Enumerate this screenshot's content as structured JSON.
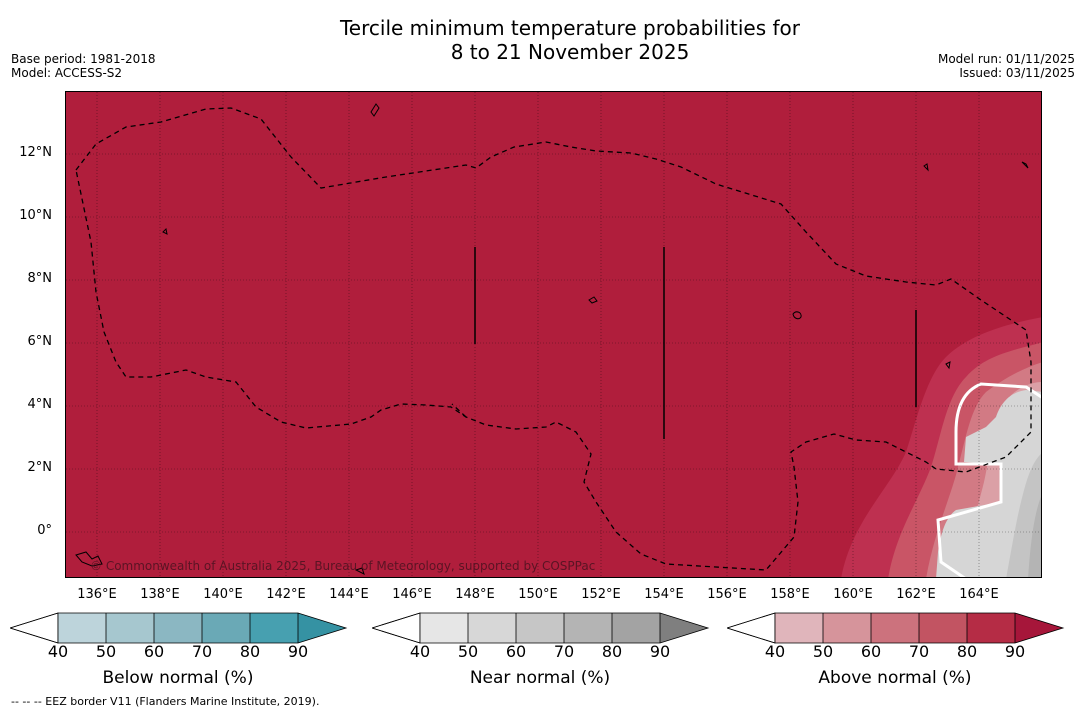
{
  "title": {
    "line1": "Tercile minimum temperature probabilities for",
    "line2": "8 to 21 November 2025"
  },
  "meta": {
    "base_period": "Base period: 1981-2018",
    "model": "Model: ACCESS-S2",
    "model_run": "Model run: 01/11/2025",
    "issued": "Issued: 03/11/2025"
  },
  "map": {
    "lon_range": [
      135,
      166
    ],
    "lat_range": [
      -1.5,
      14
    ],
    "x_ticks": [
      "136°E",
      "138°E",
      "140°E",
      "142°E",
      "144°E",
      "146°E",
      "148°E",
      "150°E",
      "152°E",
      "154°E",
      "156°E",
      "158°E",
      "160°E",
      "162°E",
      "164°E"
    ],
    "y_ticks": [
      "12°N",
      "10°N",
      "8°N",
      "6°N",
      "4°N",
      "2°N",
      "0°"
    ],
    "copyright": "© Commonwealth of Australia 2025, Bureau of Meteorology, supported by COSPPac",
    "dominant_category": "Above normal, 80-90%",
    "colors": {
      "above_90": "#b01e3c",
      "above_80": "#be3050",
      "above_70": "#c95566",
      "above_60": "#d27a84",
      "above_50": "#dba0a6",
      "near_50": "#d6d6d6",
      "near_60": "#c4c4c4",
      "near_70": "#b4b4b4",
      "near_80": "#a6a6a6"
    }
  },
  "colorbars": [
    {
      "label": "Below normal (%)",
      "ticks": [
        "40",
        "50",
        "60",
        "70",
        "80",
        "90"
      ],
      "colors": [
        "#bdd4db",
        "#a6c7cf",
        "#8bb7c2",
        "#6aa9b6",
        "#47a0b0",
        "#3592a3"
      ]
    },
    {
      "label": "Near normal (%)",
      "ticks": [
        "40",
        "50",
        "60",
        "70",
        "80",
        "90"
      ],
      "colors": [
        "#e6e6e6",
        "#d7d7d7",
        "#c6c6c6",
        "#b4b4b4",
        "#a3a3a3",
        "#7f7f7f"
      ]
    },
    {
      "label": "Above normal (%)",
      "ticks": [
        "40",
        "50",
        "60",
        "70",
        "80",
        "90"
      ],
      "colors": [
        "#e0b5bb",
        "#d6949b",
        "#cc727d",
        "#c25462",
        "#b52c45",
        "#a6163a"
      ]
    }
  ],
  "footnote": "--  --  -- EEZ border V11 (Flanders Marine Institute, 2019)."
}
